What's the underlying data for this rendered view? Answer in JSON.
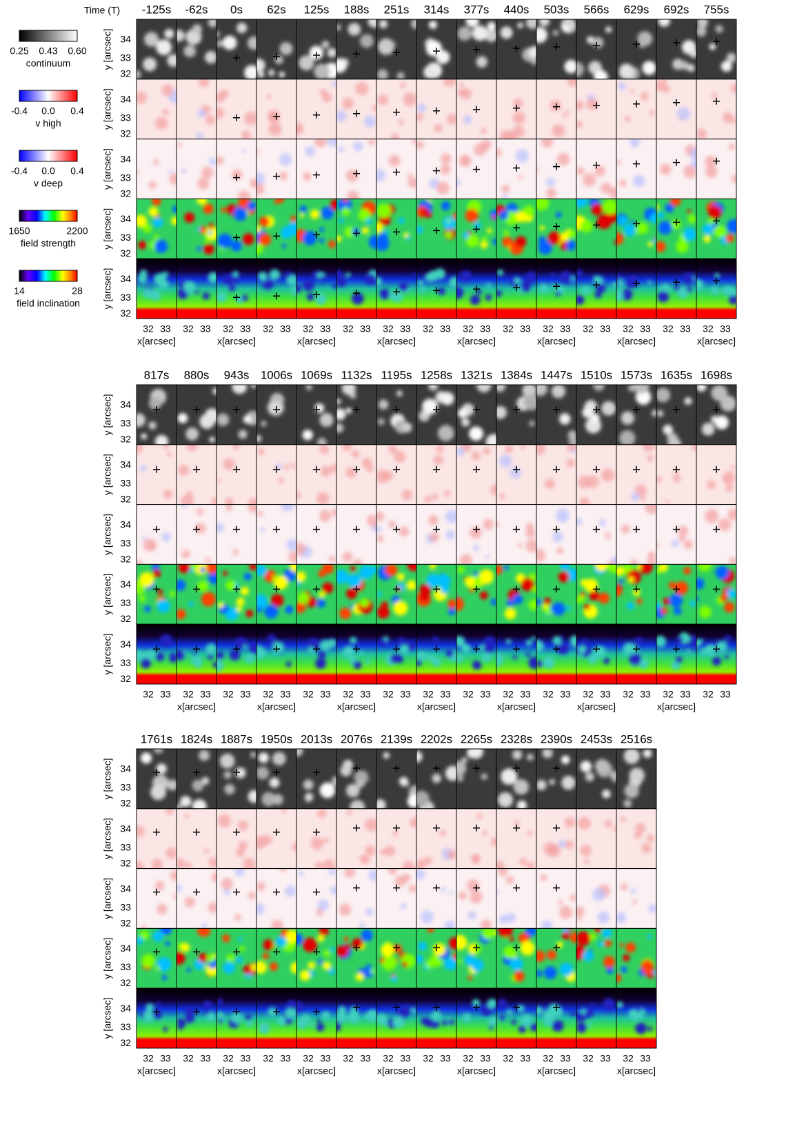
{
  "time_label": "Time (T)",
  "blocks": [
    {
      "times": [
        "-125s",
        "-62s",
        "0s",
        "62s",
        "125s",
        "188s",
        "251s",
        "314s",
        "377s",
        "440s",
        "503s",
        "566s",
        "629s",
        "692s",
        "755s"
      ]
    },
    {
      "times": [
        "817s",
        "880s",
        "943s",
        "1006s",
        "1069s",
        "1132s",
        "1195s",
        "1258s",
        "1321s",
        "1384s",
        "1447s",
        "1510s",
        "1573s",
        "1635s",
        "1698s"
      ]
    },
    {
      "times": [
        "1761s",
        "1824s",
        "1887s",
        "1950s",
        "2013s",
        "2076s",
        "2139s",
        "2202s",
        "2265s",
        "2328s",
        "2390s",
        "2453s",
        "2516s"
      ]
    }
  ],
  "colorbars": [
    {
      "ticks": [
        "0.25",
        "0.43",
        "0.60"
      ],
      "label": "continuum"
    },
    {
      "ticks": [
        "-0.4",
        "0.0",
        "0.4"
      ],
      "label": "v high"
    },
    {
      "ticks": [
        "-0.4",
        "0.0",
        "0.4"
      ],
      "label": "v deep"
    },
    {
      "ticks": [
        "1650",
        "2200"
      ],
      "label": "field strength"
    },
    {
      "ticks": [
        "14",
        "28"
      ],
      "label": "field inclination"
    }
  ],
  "y_axis_label": "y [arcsec]",
  "y_ticks": [
    "34",
    "33",
    "32"
  ],
  "x_ticks": [
    "32",
    "33"
  ],
  "x_axis_label": "x[arcsec]"
}
